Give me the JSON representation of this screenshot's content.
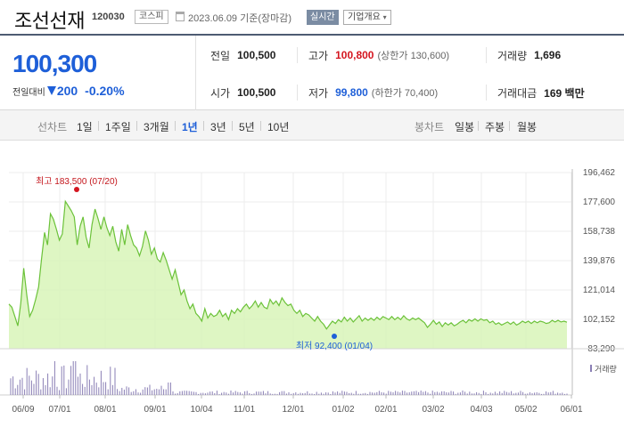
{
  "header": {
    "stock_name": "조선선재",
    "stock_code": "120030",
    "market": "코스피",
    "base_date": "2023.06.09 기준(장마감)",
    "realtime_label": "실시간",
    "overview_label": "기업개요"
  },
  "quote": {
    "current_price": "100,300",
    "change_label": "전일대비",
    "change_amount": "200",
    "change_rate": "-0.20%",
    "prev_close": {
      "label": "전일",
      "value": "100,500"
    },
    "high": {
      "label": "고가",
      "value": "100,800",
      "sub": "(상한가 130,600)"
    },
    "volume": {
      "label": "거래량",
      "value": "1,696"
    },
    "open": {
      "label": "시가",
      "value": "100,500"
    },
    "low": {
      "label": "저가",
      "value": "99,800",
      "sub": "(하한가 70,400)"
    },
    "trade_value": {
      "label": "거래대금",
      "value": "169 백만"
    },
    "colors": {
      "up": "#d4151f",
      "down": "#1e5fd8"
    }
  },
  "periods": {
    "line_label": "선차트",
    "line_items": [
      "1일",
      "1주일",
      "3개월",
      "1년",
      "3년",
      "5년",
      "10년"
    ],
    "active": "1년",
    "candle_label": "봉차트",
    "candle_items": [
      "일봉",
      "주봉",
      "월봉"
    ]
  },
  "chart_data": {
    "type": "area",
    "y_ticks": [
      "196,462",
      "177,600",
      "158,738",
      "139,876",
      "121,014",
      "102,152",
      "83,290"
    ],
    "ylim": [
      83290,
      196462
    ],
    "x_ticks": [
      "06/09",
      "07/01",
      "08/01",
      "09/01",
      "10/04",
      "11/01",
      "12/01",
      "01/02",
      "02/01",
      "03/02",
      "04/03",
      "05/02",
      "06/01"
    ],
    "annotations": {
      "high": "최고 183,500 (07/20)",
      "low": "최저 92,400 (01/04)"
    },
    "high_value": 183500,
    "low_value": 92400,
    "volume_legend": "거래량",
    "line_color": "#6cc23a",
    "fill_color": "#d8f5b9",
    "price_values": [
      112000,
      110000,
      104000,
      98000,
      112500,
      135000,
      118000,
      104000,
      108000,
      115000,
      123000,
      141000,
      158000,
      150000,
      170000,
      166500,
      160000,
      153000,
      157000,
      178000,
      175000,
      172000,
      168000,
      150000,
      162000,
      168000,
      155000,
      148000,
      163000,
      173000,
      167000,
      160000,
      168000,
      161000,
      156000,
      162000,
      152000,
      146000,
      160000,
      150000,
      163000,
      156000,
      150000,
      148000,
      143000,
      149000,
      159000,
      153000,
      144000,
      148000,
      141000,
      139000,
      145000,
      140000,
      134000,
      128000,
      134000,
      126000,
      118000,
      121000,
      114000,
      109000,
      112000,
      106000,
      104000,
      101000,
      109000,
      103000,
      106000,
      104000,
      105000,
      108000,
      104000,
      106000,
      102000,
      108000,
      106000,
      109000,
      107000,
      110000,
      112000,
      109000,
      111000,
      114000,
      110000,
      113000,
      110000,
      109000,
      115000,
      112000,
      114000,
      111000,
      116000,
      113000,
      111000,
      112000,
      108000,
      106000,
      108000,
      104000,
      106000,
      105000,
      103000,
      101000,
      104000,
      101000,
      99000,
      96000,
      98500,
      101000,
      99500,
      102000,
      100500,
      103500,
      101000,
      103000,
      100500,
      102500,
      104500,
      101000,
      103000,
      101500,
      103000,
      101500,
      103500,
      102000,
      104000,
      103000,
      102000,
      104000,
      102000,
      103500,
      102000,
      104500,
      102500,
      101500,
      103000,
      102000,
      103000,
      101500,
      100000,
      97000,
      99000,
      101500,
      99000,
      100500,
      97500,
      100000,
      98500,
      100000,
      98000,
      99000,
      100500,
      101500,
      100000,
      102000,
      101000,
      102500,
      101000,
      102500,
      101500,
      102000,
      100000,
      101000,
      99000,
      100000,
      98500,
      99500,
      100500,
      99000,
      100500,
      98500,
      99500,
      101000,
      100000,
      101000,
      99500,
      101000,
      100000,
      101000,
      100500,
      99500,
      100000,
      101500,
      100500,
      101500,
      100500,
      101000,
      100300
    ]
  }
}
